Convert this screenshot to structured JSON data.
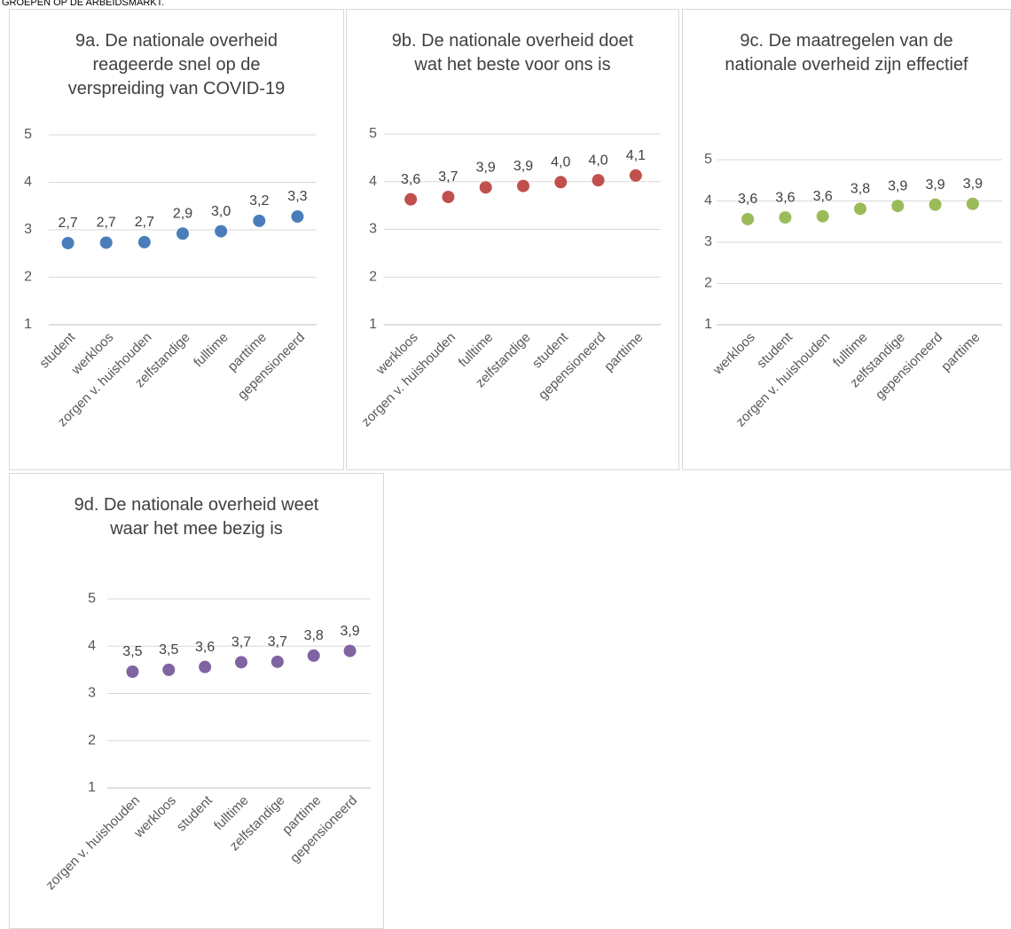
{
  "page_title": "GROEPEN OP DE ARBEIDSMARKT.",
  "chart_data": [
    {
      "type": "dot",
      "title": "9a. De nationale overheid reageerde snel op de verspreiding van COVID-19",
      "categories": [
        "student",
        "werkloos",
        "zorgen v. huishouden",
        "zelfstandige",
        "fulltime",
        "parttime",
        "gepensioneerd"
      ],
      "values": [
        2.72,
        2.73,
        2.74,
        2.92,
        2.97,
        3.19,
        3.28
      ],
      "value_labels": [
        "2,7",
        "2,7",
        "2,7",
        "2,9",
        "3,0",
        "3,2",
        "3,3"
      ],
      "color": "#4a7ebb",
      "ylim": [
        1,
        5
      ],
      "yticks": [
        1,
        2,
        3,
        4,
        5
      ],
      "grid": true
    },
    {
      "type": "dot",
      "title": "9b. De nationale overheid doet wat het beste voor ons is",
      "categories": [
        "werkloos",
        "zorgen v. huishouden",
        "fulltime",
        "zelfstandige",
        "student",
        "gepensioneerd",
        "parttime"
      ],
      "values": [
        3.63,
        3.68,
        3.88,
        3.91,
        3.99,
        4.03,
        4.13
      ],
      "value_labels": [
        "3,6",
        "3,7",
        "3,9",
        "3,9",
        "4,0",
        "4,0",
        "4,1"
      ],
      "color": "#c0504d",
      "ylim": [
        1,
        5
      ],
      "yticks": [
        1,
        2,
        3,
        4,
        5
      ],
      "grid": true
    },
    {
      "type": "dot",
      "title": "9c. De maatregelen van de nationale overheid zijn effectief",
      "categories": [
        "werkloos",
        "student",
        "zorgen v. huishouden",
        "fulltime",
        "zelfstandige",
        "gepensioneerd",
        "parttime"
      ],
      "values": [
        3.56,
        3.6,
        3.63,
        3.81,
        3.88,
        3.91,
        3.93
      ],
      "value_labels": [
        "3,6",
        "3,6",
        "3,6",
        "3,8",
        "3,9",
        "3,9",
        "3,9"
      ],
      "color": "#9bbb59",
      "ylim": [
        1,
        5
      ],
      "yticks": [
        1,
        2,
        3,
        4,
        5
      ],
      "grid": true
    },
    {
      "type": "dot",
      "title": "9d. De nationale overheid weet waar het mee bezig is",
      "categories": [
        "zorgen v. huishouden",
        "werkloos",
        "student",
        "fulltime",
        "zelfstandige",
        "parttime",
        "gepensioneerd"
      ],
      "values": [
        3.46,
        3.5,
        3.56,
        3.66,
        3.67,
        3.8,
        3.9
      ],
      "value_labels": [
        "3,5",
        "3,5",
        "3,6",
        "3,7",
        "3,7",
        "3,8",
        "3,9"
      ],
      "color": "#8064a2",
      "ylim": [
        1,
        5
      ],
      "yticks": [
        1,
        2,
        3,
        4,
        5
      ],
      "grid": true
    }
  ]
}
